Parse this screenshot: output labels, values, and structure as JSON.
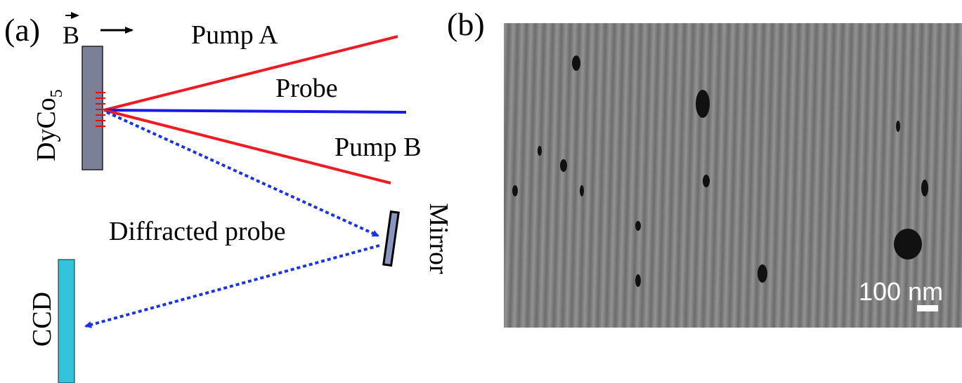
{
  "panel_a": {
    "label": "(a)",
    "field_symbol": "B",
    "pump_a": "Pump A",
    "probe": "Probe",
    "pump_b": "Pump B",
    "sample": {
      "base": "DyCo",
      "subscript": "5"
    },
    "diffracted": "Diffracted probe",
    "mirror": "Mirror",
    "detector": "CCD"
  },
  "panel_b": {
    "label": "(b)",
    "scale_bar": "100 nm"
  }
}
